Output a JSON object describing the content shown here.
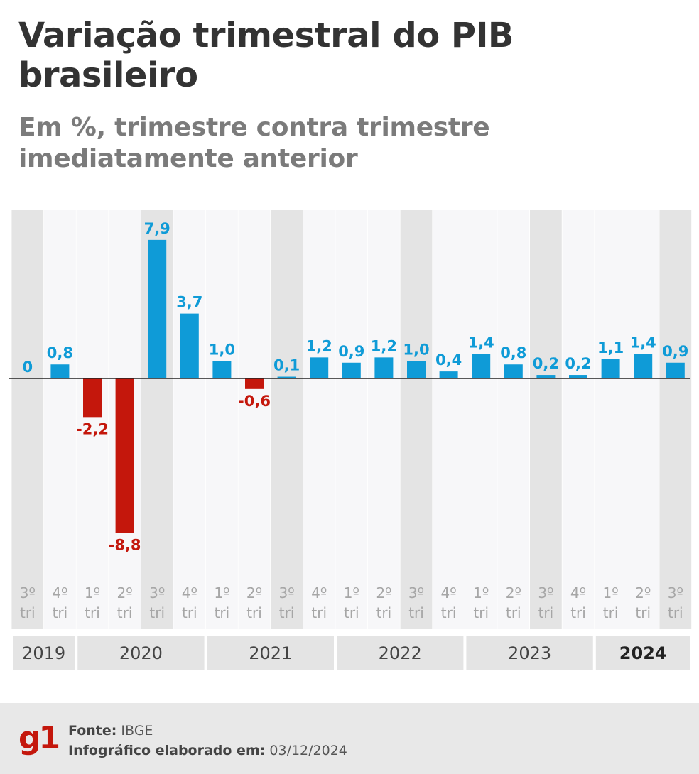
{
  "title": "Variação trimestral do PIB brasileiro",
  "subtitle": "Em %, trimestre contra trimestre imediatamente anterior",
  "colors": {
    "positive": "#0f9bd7",
    "negative": "#c4170c",
    "band_dark": "#e4e4e4",
    "band_light": "#f7f7f9",
    "axis": "#222222"
  },
  "chart_data": {
    "type": "bar",
    "title": "Variação trimestral do PIB brasileiro",
    "ylabel": "%",
    "ylim": [
      -9.5,
      8.5
    ],
    "categories": [
      {
        "quarter": "3º",
        "suffix": "tri",
        "year": "2019",
        "value": 0,
        "label": "0"
      },
      {
        "quarter": "4º",
        "suffix": "tri",
        "year": "2019",
        "value": 0.8,
        "label": "0,8"
      },
      {
        "quarter": "1º",
        "suffix": "tri",
        "year": "2020",
        "value": -2.2,
        "label": "-2,2"
      },
      {
        "quarter": "2º",
        "suffix": "tri",
        "year": "2020",
        "value": -8.8,
        "label": "-8,8"
      },
      {
        "quarter": "3º",
        "suffix": "tri",
        "year": "2020",
        "value": 7.9,
        "label": "7,9"
      },
      {
        "quarter": "4º",
        "suffix": "tri",
        "year": "2020",
        "value": 3.7,
        "label": "3,7"
      },
      {
        "quarter": "1º",
        "suffix": "tri",
        "year": "2021",
        "value": 1.0,
        "label": "1,0"
      },
      {
        "quarter": "2º",
        "suffix": "tri",
        "year": "2021",
        "value": -0.6,
        "label": "-0,6"
      },
      {
        "quarter": "3º",
        "suffix": "tri",
        "year": "2021",
        "value": 0.1,
        "label": "0,1"
      },
      {
        "quarter": "4º",
        "suffix": "tri",
        "year": "2021",
        "value": 1.2,
        "label": "1,2"
      },
      {
        "quarter": "1º",
        "suffix": "tri",
        "year": "2022",
        "value": 0.9,
        "label": "0,9"
      },
      {
        "quarter": "2º",
        "suffix": "tri",
        "year": "2022",
        "value": 1.2,
        "label": "1,2"
      },
      {
        "quarter": "3º",
        "suffix": "tri",
        "year": "2022",
        "value": 1.0,
        "label": "1,0"
      },
      {
        "quarter": "4º",
        "suffix": "tri",
        "year": "2022",
        "value": 0.4,
        "label": "0,4"
      },
      {
        "quarter": "1º",
        "suffix": "tri",
        "year": "2023",
        "value": 1.4,
        "label": "1,4"
      },
      {
        "quarter": "2º",
        "suffix": "tri",
        "year": "2023",
        "value": 0.8,
        "label": "0,8"
      },
      {
        "quarter": "3º",
        "suffix": "tri",
        "year": "2023",
        "value": 0.2,
        "label": "0,2"
      },
      {
        "quarter": "4º",
        "suffix": "tri",
        "year": "2023",
        "value": 0.2,
        "label": "0,2"
      },
      {
        "quarter": "1º",
        "suffix": "tri",
        "year": "2024",
        "value": 1.1,
        "label": "1,1"
      },
      {
        "quarter": "2º",
        "suffix": "tri",
        "year": "2024",
        "value": 1.4,
        "label": "1,4"
      },
      {
        "quarter": "3º",
        "suffix": "tri",
        "year": "2024",
        "value": 0.9,
        "label": "0,9"
      }
    ],
    "years": [
      {
        "label": "2019",
        "current": false
      },
      {
        "label": "2020",
        "current": false
      },
      {
        "label": "2021",
        "current": false
      },
      {
        "label": "2022",
        "current": false
      },
      {
        "label": "2023",
        "current": false
      },
      {
        "label": "2024",
        "current": true
      }
    ]
  },
  "footer": {
    "logo": "g1",
    "source_label": "Fonte:",
    "source_value": "IBGE",
    "date_label": "Infográfico elaborado em:",
    "date_value": "03/12/2024"
  }
}
